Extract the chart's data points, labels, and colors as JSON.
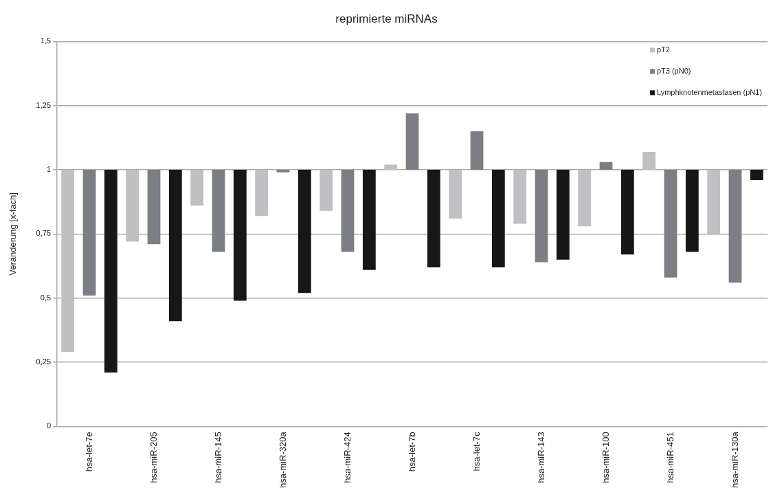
{
  "chart_data": {
    "type": "bar",
    "title": "reprimierte miRNAs",
    "ylabel": "Veränderung [x-fach]",
    "categories": [
      "hsa-let-7e",
      "hsa-miR-205",
      "hsa-miR-145",
      "hsa-miR-320a",
      "hsa-miR-424",
      "hsa-let-7b",
      "hsa-let-7c",
      "hsa-miR-143",
      "hsa-miR-100",
      "hsa-miR-451",
      "hsa-miR-130a"
    ],
    "series": [
      {
        "name": "pT2",
        "color": "#bfc0c3",
        "base": [
          1,
          1,
          1,
          1,
          1,
          1,
          1,
          1,
          1,
          1,
          1
        ],
        "values": [
          -0.71,
          -0.28,
          -0.14,
          -0.18,
          -0.16,
          0.02,
          -0.19,
          -0.21,
          -0.22,
          0.07,
          -0.25
        ]
      },
      {
        "name": "pT3 (pN0)",
        "color": "#7b7f83",
        "base": [
          1,
          1,
          1,
          1,
          1,
          1,
          1,
          1,
          1,
          1,
          1
        ],
        "values": [
          -0.49,
          -0.29,
          -0.32,
          -0.01,
          -0.32,
          0.22,
          0.15,
          -0.36,
          0.03,
          -0.42,
          -0.44
        ]
      },
      {
        "name": "Lymphknotenmetastasen (pN1)",
        "color": "#161719",
        "base": [
          1,
          1,
          1,
          1,
          1,
          1,
          1,
          1,
          1,
          1,
          1
        ],
        "values": [
          -0.79,
          -0.59,
          -0.51,
          -0.48,
          -0.39,
          -0.38,
          -0.38,
          -0.35,
          -0.33,
          -0.32,
          -0.04
        ]
      }
    ],
    "ylim": [
      0,
      1.5
    ],
    "yticks": [
      0,
      {
        "value": 0.25,
        "label": "0,25"
      },
      {
        "value": 0.5,
        "label": "0,5"
      },
      {
        "value": 0.75,
        "label": "0,75"
      },
      1,
      {
        "value": 1.25,
        "label": "1,25"
      },
      {
        "value": 1.5,
        "label": "1,5"
      }
    ],
    "grid": "y",
    "legend": "top right"
  }
}
